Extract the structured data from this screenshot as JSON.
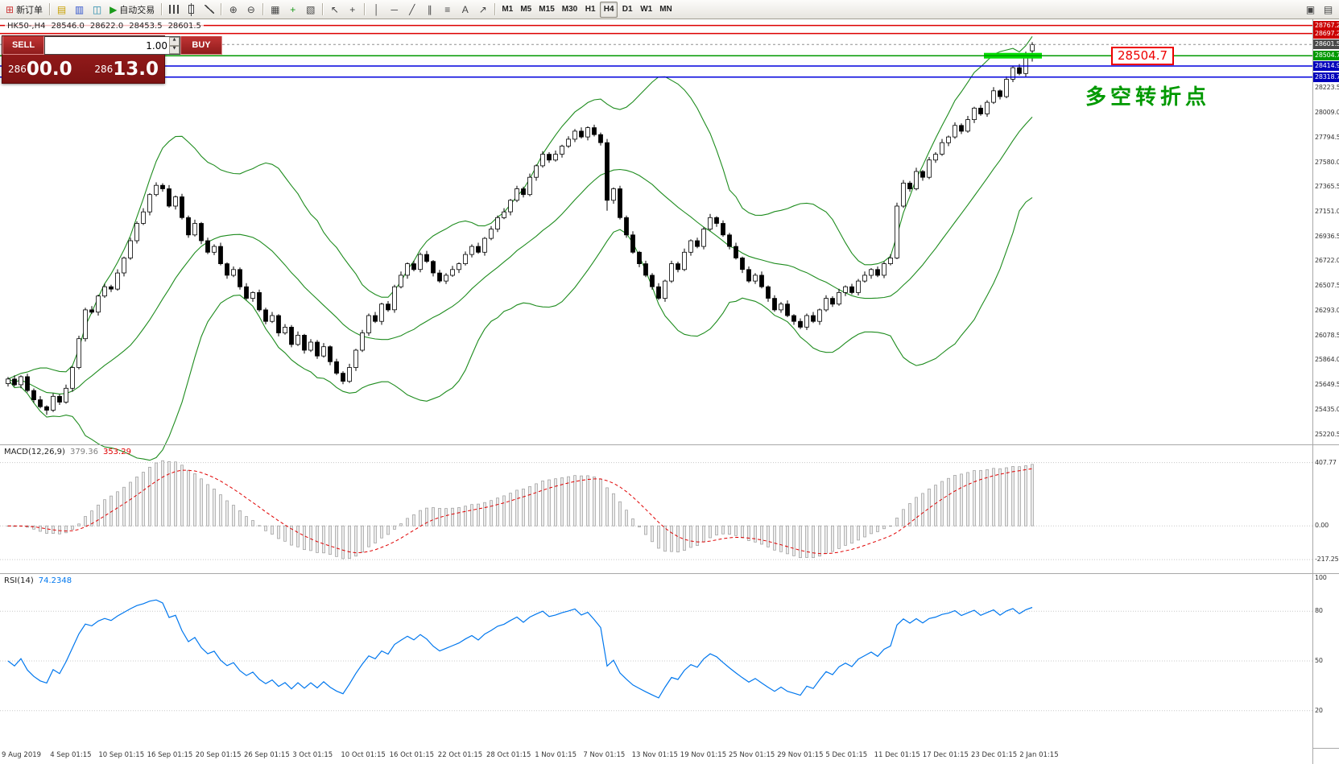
{
  "toolbar": {
    "items": [
      {
        "type": "button",
        "name": "new-order",
        "glyph": "⊞",
        "glyph_color": "#cc3333",
        "label": "新订单"
      },
      {
        "type": "sep"
      },
      {
        "type": "icon",
        "name": "new-chart",
        "glyph": "▤",
        "glyph_color": "#c8a000"
      },
      {
        "type": "icon",
        "name": "profiles",
        "glyph": "▥",
        "glyph_color": "#3355cc"
      },
      {
        "type": "icon",
        "name": "market-watch",
        "glyph": "◫",
        "glyph_color": "#2288aa"
      },
      {
        "type": "button",
        "name": "auto-trading",
        "glyph": "▶",
        "glyph_color": "#1a9a1a",
        "label": "自动交易"
      },
      {
        "type": "sep"
      },
      {
        "type": "icon",
        "name": "bar-chart-mode",
        "cls": "g-bars"
      },
      {
        "type": "icon",
        "name": "candlestick-mode",
        "cls": "g-candle"
      },
      {
        "type": "icon",
        "name": "line-chart-mode",
        "cls": "g-line"
      },
      {
        "type": "sep"
      },
      {
        "type": "icon",
        "name": "zoom-in",
        "glyph": "⊕"
      },
      {
        "type": "icon",
        "name": "zoom-out",
        "glyph": "⊖"
      },
      {
        "type": "sep"
      },
      {
        "type": "icon",
        "name": "tile-windows",
        "glyph": "▦"
      },
      {
        "type": "icon",
        "name": "indicators-list",
        "glyph": "+",
        "glyph_color": "#1a9a1a"
      },
      {
        "type": "icon",
        "name": "templates",
        "glyph": "▧"
      },
      {
        "type": "sep"
      },
      {
        "type": "icon",
        "name": "cursor-tool",
        "glyph": "↖"
      },
      {
        "type": "icon",
        "name": "crosshair-tool",
        "glyph": "+"
      },
      {
        "type": "sep"
      },
      {
        "type": "icon",
        "name": "vertical-line-tool",
        "glyph": "│"
      },
      {
        "type": "icon",
        "name": "horizontal-line-tool",
        "glyph": "─"
      },
      {
        "type": "icon",
        "name": "trendline-tool",
        "glyph": "╱"
      },
      {
        "type": "icon",
        "name": "equidistant-channel-tool",
        "glyph": "∥"
      },
      {
        "type": "icon",
        "name": "fibonacci-tool",
        "glyph": "≡"
      },
      {
        "type": "icon",
        "name": "text-tool",
        "glyph": "A"
      },
      {
        "type": "icon",
        "name": "arrow-objects-tool",
        "glyph": "↗"
      },
      {
        "type": "sep"
      },
      {
        "type": "tf",
        "name": "timeframe-m1",
        "label": "M1"
      },
      {
        "type": "tf",
        "name": "timeframe-m5",
        "label": "M5"
      },
      {
        "type": "tf",
        "name": "timeframe-m15",
        "label": "M15"
      },
      {
        "type": "tf",
        "name": "timeframe-m30",
        "label": "M30"
      },
      {
        "type": "tf",
        "name": "timeframe-h1",
        "label": "H1"
      },
      {
        "type": "tf",
        "name": "timeframe-h4",
        "label": "H4",
        "active": true
      },
      {
        "type": "tf",
        "name": "timeframe-d1",
        "label": "D1"
      },
      {
        "type": "tf",
        "name": "timeframe-w1",
        "label": "W1"
      },
      {
        "type": "tf",
        "name": "timeframe-mn",
        "label": "MN"
      }
    ],
    "right_items": [
      {
        "type": "icon",
        "name": "arrange-windows",
        "glyph": "▣"
      },
      {
        "type": "icon",
        "name": "window-list",
        "glyph": "▤"
      }
    ]
  },
  "chart": {
    "header": {
      "symbol_period": "HK50-,H4",
      "open": "28546.0",
      "high": "28622.0",
      "low": "28453.5",
      "close": "28601.5"
    },
    "trade_panel": {
      "sell_label": "SELL",
      "buy_label": "BUY",
      "volume": "1.00",
      "sell_price": "28600.0",
      "buy_price": "28613.0"
    },
    "levels": [
      {
        "price": 28767.2,
        "label": "28767.2",
        "color": "#dd0000",
        "width": 1.5,
        "box": "#cc0000"
      },
      {
        "price": 28697.2,
        "label": "28697.2",
        "color": "#dd0000",
        "width": 1.5,
        "box": "#cc0000"
      },
      {
        "price": 28601.5,
        "label": "28601.5",
        "color": "#909090",
        "width": 1,
        "dash": true,
        "box": "#4a4a4a"
      },
      {
        "price": 28504.7,
        "label": "28504.7",
        "color": "#009900",
        "width": 1.5,
        "box": "#009900"
      },
      {
        "price": 28414.9,
        "label": "28414.9",
        "color": "#0000dd",
        "width": 1.5,
        "box": "#0000bb"
      },
      {
        "price": 28318.7,
        "label": "28318.7",
        "color": "#0000dd",
        "width": 1.5,
        "box": "#0000bb"
      }
    ],
    "highlight": {
      "price": 28504.7,
      "from_bar": 152,
      "to_bar": 160,
      "color": "#00dd00"
    },
    "annotation": {
      "text": "多空转折点",
      "color": "#009900"
    },
    "price_flag": "28504.7"
  },
  "indicators": {
    "macd": {
      "label": "MACD(12,26,9)",
      "values": [
        "379.36",
        "353.29"
      ],
      "ticks": [
        "407.77",
        "0.00",
        "-217.25"
      ],
      "histogram_color": "#c0c0c0",
      "signal_color": "#e00000"
    },
    "rsi": {
      "label": "RSI(14)",
      "value": "74.2348",
      "ticks": [
        "100",
        "80",
        "50",
        "20"
      ],
      "levels": [
        80,
        50,
        20
      ],
      "line_color": "#0077ee"
    }
  },
  "chart_data": {
    "type": "candlestick",
    "symbol": "HK50",
    "timeframe": "H4",
    "overlays": [
      "Bollinger Bands(20,2)"
    ],
    "indicators": [
      "MACD(12,26,9)",
      "RSI(14)"
    ],
    "price_ticks": [
      "28223.5",
      "28009.0",
      "27794.5",
      "27580.0",
      "27365.5",
      "27151.0",
      "26936.5",
      "26722.0",
      "26507.5",
      "26293.0",
      "26078.5",
      "25864.0",
      "25649.5",
      "25435.0",
      "25220.5"
    ],
    "time_ticks": [
      "9 Aug 2019",
      "4 Sep 01:15",
      "10 Sep 01:15",
      "16 Sep 01:15",
      "20 Sep 01:15",
      "26 Sep 01:15",
      "3 Oct 01:15",
      "10 Oct 01:15",
      "16 Oct 01:15",
      "22 Oct 01:15",
      "28 Oct 01:15",
      "1 Nov 01:15",
      "7 Nov 01:15",
      "13 Nov 01:15",
      "19 Nov 01:15",
      "25 Nov 01:15",
      "29 Nov 01:15",
      "5 Dec 01:15",
      "11 Dec 01:15",
      "17 Dec 01:15",
      "23 Dec 01:15",
      "2 Jan 01:15"
    ],
    "candles": [
      [
        25660,
        25718,
        25635,
        25700
      ],
      [
        25700,
        25732,
        25636,
        25650
      ],
      [
        25650,
        25732,
        25620,
        25720
      ],
      [
        25720,
        25746,
        25584,
        25600
      ],
      [
        25600,
        25618,
        25495,
        25520
      ],
      [
        25520,
        25552,
        25446,
        25460
      ],
      [
        25460,
        25472,
        25390,
        25430
      ],
      [
        25430,
        25576,
        25414,
        25550
      ],
      [
        25550,
        25568,
        25475,
        25500
      ],
      [
        25500,
        25652,
        25486,
        25620
      ],
      [
        25620,
        25812,
        25590,
        25800
      ],
      [
        25800,
        26076,
        25784,
        26050
      ],
      [
        26050,
        26318,
        26025,
        26300
      ],
      [
        26300,
        26332,
        26266,
        26280
      ],
      [
        26280,
        26432,
        26250,
        26420
      ],
      [
        26420,
        26526,
        26404,
        26500
      ],
      [
        26500,
        26518,
        26455,
        26480
      ],
      [
        26480,
        26652,
        26466,
        26620
      ],
      [
        26620,
        26762,
        26590,
        26750
      ],
      [
        26750,
        26926,
        26734,
        26900
      ],
      [
        26900,
        27068,
        26875,
        27050
      ],
      [
        27050,
        27182,
        27036,
        27150
      ],
      [
        27150,
        27312,
        27120,
        27300
      ],
      [
        27300,
        27406,
        27284,
        27380
      ],
      [
        27380,
        27398,
        27325,
        27350
      ],
      [
        27350,
        27382,
        27186,
        27200
      ],
      [
        27200,
        27292,
        27170,
        27280
      ],
      [
        27280,
        27306,
        27084,
        27100
      ],
      [
        27100,
        27118,
        26925,
        26950
      ],
      [
        26950,
        27082,
        26936,
        27050
      ],
      [
        27050,
        27062,
        26870,
        26900
      ],
      [
        26900,
        26926,
        26784,
        26800
      ],
      [
        26800,
        26868,
        26775,
        26850
      ],
      [
        26850,
        26882,
        26686,
        26700
      ],
      [
        26700,
        26712,
        26570,
        26600
      ],
      [
        26600,
        26676,
        26584,
        26650
      ],
      [
        26650,
        26668,
        26475,
        26500
      ],
      [
        26500,
        26532,
        26386,
        26400
      ],
      [
        26400,
        26462,
        26370,
        26450
      ],
      [
        26450,
        26476,
        26284,
        26300
      ],
      [
        26300,
        26318,
        26175,
        26200
      ],
      [
        26200,
        26282,
        26186,
        26250
      ],
      [
        26250,
        26262,
        26070,
        26100
      ],
      [
        26100,
        26176,
        26084,
        26150
      ],
      [
        26150,
        26168,
        25975,
        26000
      ],
      [
        26000,
        26112,
        25986,
        26080
      ],
      [
        26080,
        26092,
        25920,
        25950
      ],
      [
        25950,
        26046,
        25934,
        26020
      ],
      [
        26020,
        26038,
        25875,
        25900
      ],
      [
        25900,
        26012,
        25886,
        25980
      ],
      [
        25980,
        25992,
        25820,
        25850
      ],
      [
        25850,
        25876,
        25734,
        25750
      ],
      [
        25750,
        25768,
        25655,
        25680
      ],
      [
        25680,
        25832,
        25666,
        25800
      ],
      [
        25800,
        25962,
        25770,
        25950
      ],
      [
        25950,
        26126,
        25934,
        26100
      ],
      [
        26100,
        26268,
        26075,
        26250
      ],
      [
        26250,
        26282,
        26186,
        26200
      ],
      [
        26200,
        26362,
        26170,
        26350
      ],
      [
        26350,
        26376,
        26284,
        26300
      ],
      [
        26300,
        26518,
        26275,
        26500
      ],
      [
        26500,
        26632,
        26486,
        26600
      ],
      [
        26600,
        26712,
        26570,
        26700
      ],
      [
        26700,
        26726,
        26634,
        26650
      ],
      [
        26650,
        26798,
        26625,
        26780
      ],
      [
        26780,
        26812,
        26706,
        26720
      ],
      [
        26720,
        26732,
        26590,
        26620
      ],
      [
        26620,
        26646,
        26534,
        26550
      ],
      [
        26550,
        26618,
        26525,
        26600
      ],
      [
        26600,
        26682,
        26586,
        26650
      ],
      [
        26650,
        26712,
        26620,
        26700
      ],
      [
        26700,
        26806,
        26684,
        26780
      ],
      [
        26780,
        26868,
        26755,
        26850
      ],
      [
        26850,
        26882,
        26786,
        26800
      ],
      [
        26800,
        26932,
        26770,
        26920
      ],
      [
        26920,
        27026,
        26904,
        27000
      ],
      [
        27000,
        27118,
        26975,
        27100
      ],
      [
        27100,
        27182,
        27086,
        27150
      ],
      [
        27150,
        27262,
        27120,
        27250
      ],
      [
        27250,
        27376,
        27234,
        27350
      ],
      [
        27350,
        27368,
        27275,
        27300
      ],
      [
        27300,
        27482,
        27286,
        27450
      ],
      [
        27450,
        27562,
        27420,
        27550
      ],
      [
        27550,
        27676,
        27534,
        27650
      ],
      [
        27650,
        27668,
        27575,
        27600
      ],
      [
        27600,
        27682,
        27586,
        27650
      ],
      [
        27650,
        27732,
        27620,
        27720
      ],
      [
        27720,
        27806,
        27704,
        27780
      ],
      [
        27780,
        27868,
        27755,
        27850
      ],
      [
        27850,
        27882,
        27786,
        27800
      ],
      [
        27800,
        27892,
        27770,
        27880
      ],
      [
        27880,
        27906,
        27804,
        27820
      ],
      [
        27820,
        27838,
        27725,
        27750
      ],
      [
        27750,
        27782,
        27160,
        27250
      ],
      [
        27250,
        27362,
        27220,
        27350
      ],
      [
        27350,
        27376,
        27084,
        27100
      ],
      [
        27100,
        27118,
        26925,
        26950
      ],
      [
        26950,
        26982,
        26786,
        26800
      ],
      [
        26800,
        26812,
        26670,
        26700
      ],
      [
        26700,
        26726,
        26584,
        26600
      ],
      [
        26600,
        26618,
        26475,
        26500
      ],
      [
        26500,
        26532,
        26386,
        26400
      ],
      [
        26400,
        26562,
        26370,
        26550
      ],
      [
        26550,
        26726,
        26534,
        26700
      ],
      [
        26700,
        26718,
        26625,
        26650
      ],
      [
        26650,
        26832,
        26636,
        26800
      ],
      [
        26800,
        26912,
        26770,
        26900
      ],
      [
        26900,
        26926,
        26834,
        26850
      ],
      [
        26850,
        27018,
        26825,
        27000
      ],
      [
        27000,
        27132,
        26986,
        27100
      ],
      [
        27100,
        27112,
        27020,
        27050
      ],
      [
        27050,
        27076,
        26934,
        26950
      ],
      [
        26950,
        26968,
        26825,
        26850
      ],
      [
        26850,
        26882,
        26736,
        26750
      ],
      [
        26750,
        26762,
        26620,
        26650
      ],
      [
        26650,
        26676,
        26534,
        26550
      ],
      [
        26550,
        26618,
        26525,
        26600
      ],
      [
        26600,
        26632,
        26486,
        26500
      ],
      [
        26500,
        26512,
        26370,
        26400
      ],
      [
        26400,
        26426,
        26284,
        26300
      ],
      [
        26300,
        26368,
        26275,
        26350
      ],
      [
        26350,
        26382,
        26236,
        26250
      ],
      [
        26250,
        26262,
        26170,
        26200
      ],
      [
        26200,
        26226,
        26134,
        26150
      ],
      [
        26150,
        26268,
        26125,
        26250
      ],
      [
        26250,
        26282,
        26186,
        26200
      ],
      [
        26200,
        26312,
        26170,
        26300
      ],
      [
        26300,
        26426,
        26284,
        26400
      ],
      [
        26400,
        26418,
        26325,
        26350
      ],
      [
        26350,
        26482,
        26336,
        26450
      ],
      [
        26450,
        26512,
        26420,
        26500
      ],
      [
        26500,
        26526,
        26434,
        26450
      ],
      [
        26450,
        26568,
        26425,
        26550
      ],
      [
        26550,
        26632,
        26536,
        26600
      ],
      [
        26600,
        26662,
        26570,
        26650
      ],
      [
        26650,
        26676,
        26584,
        26600
      ],
      [
        26600,
        26718,
        26575,
        26700
      ],
      [
        26700,
        26782,
        26686,
        26750
      ],
      [
        26750,
        27230,
        26740,
        27200
      ],
      [
        27200,
        27426,
        27184,
        27400
      ],
      [
        27400,
        27418,
        27325,
        27350
      ],
      [
        27350,
        27532,
        27336,
        27500
      ],
      [
        27500,
        27512,
        27420,
        27450
      ],
      [
        27450,
        27626,
        27434,
        27600
      ],
      [
        27600,
        27668,
        27575,
        27650
      ],
      [
        27650,
        27782,
        27636,
        27750
      ],
      [
        27750,
        27812,
        27720,
        27800
      ],
      [
        27800,
        27926,
        27784,
        27900
      ],
      [
        27900,
        27918,
        27825,
        27850
      ],
      [
        27850,
        27982,
        27836,
        27950
      ],
      [
        27950,
        28062,
        27920,
        28050
      ],
      [
        28050,
        28076,
        27984,
        28000
      ],
      [
        28000,
        28118,
        27975,
        28100
      ],
      [
        28100,
        28232,
        28086,
        28200
      ],
      [
        28200,
        28212,
        28125,
        28150
      ],
      [
        28150,
        28326,
        28136,
        28300
      ],
      [
        28300,
        28418,
        28275,
        28400
      ],
      [
        28400,
        28432,
        28334,
        28350
      ],
      [
        28350,
        28540,
        28320,
        28500
      ],
      [
        28546,
        28622,
        28453.5,
        28601.5
      ]
    ]
  }
}
